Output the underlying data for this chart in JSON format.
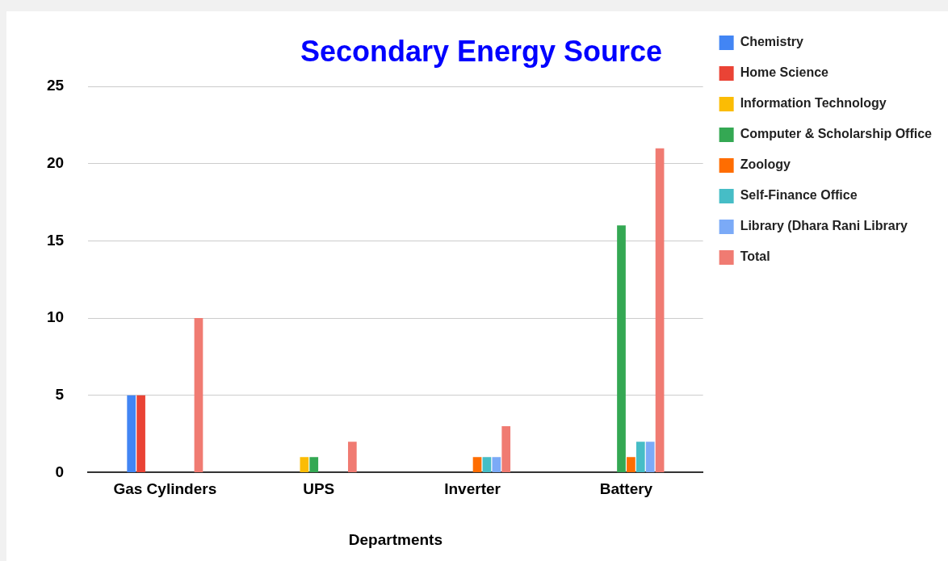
{
  "chart_data": {
    "type": "bar",
    "title": "Secondary Energy Source",
    "xlabel": "Departments",
    "categories": [
      "Gas Cylinders",
      "UPS",
      "Inverter",
      "Battery"
    ],
    "series": [
      {
        "name": "Chemistry",
        "color": "#4285f4",
        "values": [
          5,
          0,
          0,
          0
        ]
      },
      {
        "name": "Home Science",
        "color": "#ea4335",
        "values": [
          5,
          0,
          0,
          0
        ]
      },
      {
        "name": "Information Technology",
        "color": "#fbbc04",
        "values": [
          0,
          1,
          0,
          0
        ]
      },
      {
        "name": "Computer & Scholarship Office",
        "color": "#34a853",
        "values": [
          0,
          1,
          0,
          16
        ]
      },
      {
        "name": "Zoology",
        "color": "#ff6d01",
        "values": [
          0,
          0,
          1,
          1
        ]
      },
      {
        "name": "Self-Finance Office",
        "color": "#46bdc6",
        "values": [
          0,
          0,
          1,
          2
        ]
      },
      {
        "name": "Library (Dhara Rani Library",
        "color": "#7baaf7",
        "values": [
          0,
          0,
          1,
          2
        ]
      },
      {
        "name": "Total",
        "color": "#f07b72",
        "values": [
          10,
          2,
          3,
          21
        ]
      }
    ],
    "ylim": [
      0,
      25
    ],
    "yticks": [
      0,
      5,
      10,
      15,
      20,
      25
    ],
    "grid": "y",
    "legend": "right"
  }
}
